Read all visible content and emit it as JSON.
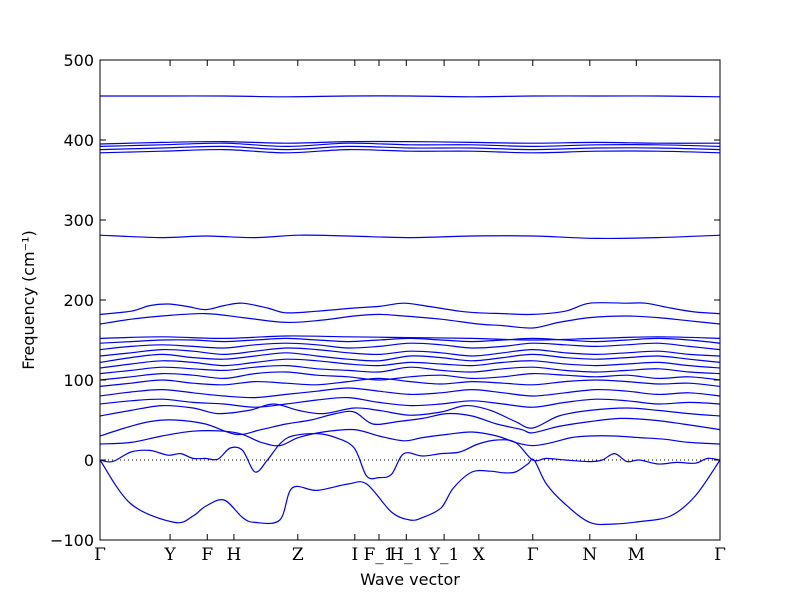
{
  "chart_data": {
    "type": "line",
    "title": "",
    "xlabel": "Wave vector",
    "ylabel": "Frequency (cm⁻¹)",
    "ylim": [
      -100,
      500
    ],
    "yticks": [
      -100,
      0,
      100,
      200,
      300,
      400,
      500
    ],
    "ytick_labels": [
      "−100",
      "0",
      "100",
      "200",
      "300",
      "400",
      "500"
    ],
    "xlim": [
      0,
      1
    ],
    "grid": false,
    "zero_line": "dotted",
    "line_color": "#0000ee",
    "high_symmetry_points": [
      {
        "label": "Γ",
        "x": 0.0
      },
      {
        "label": "Y",
        "x": 0.113
      },
      {
        "label": "F",
        "x": 0.173
      },
      {
        "label": "H",
        "x": 0.216
      },
      {
        "label": "Z",
        "x": 0.319
      },
      {
        "label": "I",
        "x": 0.411
      },
      {
        "label": "F_1",
        "x": 0.45
      },
      {
        "label": "H_1",
        "x": 0.494
      },
      {
        "label": "Y_1",
        "x": 0.555
      },
      {
        "label": "X",
        "x": 0.611
      },
      {
        "label": "Γ",
        "x": 0.698
      },
      {
        "label": "N",
        "x": 0.79
      },
      {
        "label": "M",
        "x": 0.865
      },
      {
        "label": "Γ",
        "x": 1.0
      }
    ],
    "series": [
      {
        "x": [
          0,
          0.05,
          0.12,
          0.15,
          0.17,
          0.2,
          0.23,
          0.25,
          0.29,
          0.31,
          0.35,
          0.4,
          0.43,
          0.47,
          0.5,
          0.52,
          0.55,
          0.57,
          0.6,
          0.63,
          0.65,
          0.67,
          0.69,
          0.7,
          0.72,
          0.75,
          0.79,
          0.83,
          0.87,
          0.92,
          0.96,
          1.0
        ],
        "y": [
          0,
          -55,
          -78,
          -70,
          -58,
          -50,
          -72,
          -78,
          -75,
          -35,
          -38,
          -30,
          -30,
          -65,
          -75,
          -72,
          -60,
          -35,
          -15,
          -14,
          -16,
          -15,
          -5,
          0,
          -30,
          -55,
          -78,
          -80,
          -77,
          -70,
          -45,
          0
        ]
      },
      {
        "x": [
          0,
          0.02,
          0.05,
          0.08,
          0.11,
          0.13,
          0.15,
          0.17,
          0.19,
          0.21,
          0.23,
          0.25,
          0.27,
          0.29,
          0.31,
          0.35,
          0.38,
          0.41,
          0.43,
          0.45,
          0.47,
          0.49,
          0.52,
          0.55,
          0.58,
          0.61,
          0.64,
          0.67,
          0.698,
          0.72,
          0.75,
          0.79,
          0.81,
          0.83,
          0.85,
          0.87,
          0.9,
          0.93,
          0.96,
          0.98,
          1.0
        ],
        "y": [
          0,
          -2,
          10,
          12,
          6,
          8,
          2,
          2,
          1,
          15,
          12,
          -15,
          0,
          20,
          30,
          33,
          28,
          15,
          -20,
          -22,
          -18,
          8,
          5,
          8,
          10,
          20,
          25,
          22,
          0,
          2,
          0,
          -2,
          0,
          8,
          -2,
          0,
          -5,
          -3,
          -4,
          2,
          0
        ]
      },
      {
        "x": [
          0,
          0.05,
          0.1,
          0.15,
          0.2,
          0.23,
          0.26,
          0.29,
          0.32,
          0.36,
          0.41,
          0.45,
          0.49,
          0.52,
          0.56,
          0.6,
          0.64,
          0.67,
          0.698,
          0.73,
          0.76,
          0.79,
          0.83,
          0.87,
          0.91,
          0.95,
          1.0
        ],
        "y": [
          20,
          22,
          30,
          36,
          36,
          32,
          22,
          18,
          28,
          35,
          38,
          30,
          24,
          28,
          32,
          35,
          30,
          22,
          18,
          22,
          28,
          30,
          30,
          28,
          26,
          22,
          20
        ]
      },
      {
        "x": [
          0,
          0.04,
          0.08,
          0.12,
          0.17,
          0.22,
          0.26,
          0.3,
          0.34,
          0.38,
          0.41,
          0.44,
          0.48,
          0.52,
          0.56,
          0.6,
          0.64,
          0.68,
          0.698,
          0.74,
          0.79,
          0.84,
          0.89,
          0.94,
          1.0
        ],
        "y": [
          30,
          40,
          48,
          50,
          45,
          32,
          38,
          45,
          50,
          58,
          60,
          45,
          48,
          52,
          58,
          55,
          45,
          38,
          34,
          42,
          48,
          52,
          50,
          45,
          38
        ]
      },
      {
        "x": [
          0,
          0.05,
          0.1,
          0.15,
          0.19,
          0.24,
          0.28,
          0.32,
          0.36,
          0.41,
          0.45,
          0.5,
          0.55,
          0.59,
          0.63,
          0.67,
          0.698,
          0.74,
          0.79,
          0.85,
          0.9,
          0.95,
          1.0
        ],
        "y": [
          55,
          62,
          68,
          65,
          58,
          62,
          70,
          62,
          58,
          65,
          62,
          56,
          60,
          68,
          62,
          48,
          40,
          55,
          62,
          65,
          62,
          58,
          55
        ]
      },
      {
        "x": [
          0,
          0.05,
          0.1,
          0.15,
          0.2,
          0.25,
          0.3,
          0.35,
          0.4,
          0.45,
          0.5,
          0.55,
          0.6,
          0.65,
          0.698,
          0.75,
          0.8,
          0.85,
          0.9,
          0.95,
          1.0
        ],
        "y": [
          70,
          74,
          76,
          72,
          70,
          66,
          70,
          75,
          78,
          72,
          68,
          70,
          74,
          70,
          66,
          72,
          76,
          74,
          70,
          72,
          70
        ]
      },
      {
        "x": [
          0,
          0.05,
          0.1,
          0.15,
          0.2,
          0.25,
          0.3,
          0.35,
          0.4,
          0.45,
          0.5,
          0.55,
          0.6,
          0.65,
          0.698,
          0.75,
          0.8,
          0.85,
          0.9,
          0.95,
          1.0
        ],
        "y": [
          80,
          85,
          88,
          84,
          80,
          78,
          82,
          86,
          90,
          86,
          82,
          84,
          88,
          84,
          80,
          84,
          88,
          86,
          82,
          84,
          80
        ]
      },
      {
        "x": [
          0,
          0.05,
          0.1,
          0.15,
          0.2,
          0.25,
          0.3,
          0.35,
          0.4,
          0.45,
          0.5,
          0.55,
          0.6,
          0.65,
          0.698,
          0.75,
          0.8,
          0.85,
          0.9,
          0.95,
          1.0
        ],
        "y": [
          92,
          96,
          100,
          96,
          94,
          98,
          96,
          94,
          98,
          102,
          98,
          95,
          98,
          96,
          94,
          98,
          100,
          98,
          95,
          96,
          92
        ]
      },
      {
        "x": [
          0,
          0.05,
          0.1,
          0.15,
          0.2,
          0.25,
          0.3,
          0.35,
          0.4,
          0.45,
          0.5,
          0.55,
          0.6,
          0.65,
          0.698,
          0.75,
          0.8,
          0.85,
          0.9,
          0.95,
          1.0
        ],
        "y": [
          100,
          104,
          108,
          106,
          102,
          108,
          110,
          106,
          104,
          100,
          104,
          106,
          102,
          104,
          108,
          106,
          104,
          106,
          102,
          104,
          100
        ]
      },
      {
        "x": [
          0,
          0.05,
          0.1,
          0.15,
          0.2,
          0.25,
          0.3,
          0.35,
          0.4,
          0.45,
          0.5,
          0.55,
          0.6,
          0.65,
          0.698,
          0.75,
          0.8,
          0.85,
          0.9,
          0.95,
          1.0
        ],
        "y": [
          108,
          112,
          116,
          114,
          112,
          116,
          118,
          114,
          112,
          110,
          116,
          112,
          110,
          114,
          116,
          112,
          110,
          112,
          114,
          110,
          108
        ]
      },
      {
        "x": [
          0,
          0.05,
          0.1,
          0.15,
          0.2,
          0.25,
          0.3,
          0.35,
          0.4,
          0.45,
          0.5,
          0.55,
          0.6,
          0.65,
          0.698,
          0.75,
          0.8,
          0.85,
          0.9,
          0.95,
          1.0
        ],
        "y": [
          115,
          120,
          124,
          122,
          118,
          122,
          126,
          124,
          120,
          118,
          122,
          120,
          118,
          122,
          124,
          120,
          118,
          120,
          122,
          118,
          115
        ]
      },
      {
        "x": [
          0,
          0.05,
          0.1,
          0.15,
          0.2,
          0.25,
          0.3,
          0.35,
          0.4,
          0.45,
          0.5,
          0.55,
          0.6,
          0.65,
          0.698,
          0.75,
          0.8,
          0.85,
          0.9,
          0.95,
          1.0
        ],
        "y": [
          122,
          128,
          132,
          128,
          126,
          130,
          134,
          130,
          126,
          124,
          130,
          128,
          124,
          128,
          132,
          128,
          126,
          128,
          130,
          126,
          122
        ]
      },
      {
        "x": [
          0,
          0.05,
          0.1,
          0.15,
          0.2,
          0.25,
          0.3,
          0.35,
          0.4,
          0.45,
          0.5,
          0.55,
          0.6,
          0.65,
          0.698,
          0.75,
          0.8,
          0.85,
          0.9,
          0.95,
          1.0
        ],
        "y": [
          130,
          134,
          138,
          136,
          132,
          136,
          140,
          138,
          134,
          132,
          136,
          134,
          130,
          134,
          138,
          134,
          132,
          134,
          136,
          132,
          130
        ]
      },
      {
        "x": [
          0,
          0.05,
          0.1,
          0.15,
          0.2,
          0.25,
          0.3,
          0.35,
          0.4,
          0.45,
          0.5,
          0.55,
          0.6,
          0.65,
          0.698,
          0.75,
          0.8,
          0.85,
          0.9,
          0.95,
          1.0
        ],
        "y": [
          138,
          142,
          144,
          142,
          140,
          144,
          146,
          144,
          140,
          142,
          146,
          144,
          140,
          142,
          146,
          144,
          142,
          144,
          146,
          142,
          138
        ]
      },
      {
        "x": [
          0,
          0.05,
          0.1,
          0.15,
          0.2,
          0.25,
          0.3,
          0.35,
          0.4,
          0.45,
          0.5,
          0.55,
          0.6,
          0.65,
          0.698,
          0.75,
          0.8,
          0.85,
          0.9,
          0.95,
          1.0
        ],
        "y": [
          146,
          148,
          150,
          150,
          148,
          150,
          152,
          150,
          148,
          150,
          152,
          150,
          148,
          150,
          152,
          150,
          148,
          150,
          152,
          150,
          146
        ]
      },
      {
        "x": [
          0,
          0.1,
          0.2,
          0.3,
          0.4,
          0.5,
          0.6,
          0.698,
          0.8,
          0.9,
          1.0
        ],
        "y": [
          152,
          154,
          152,
          155,
          154,
          153,
          152,
          150,
          152,
          154,
          152
        ]
      },
      {
        "x": [
          0,
          0.05,
          0.1,
          0.17,
          0.23,
          0.3,
          0.36,
          0.41,
          0.45,
          0.49,
          0.55,
          0.61,
          0.65,
          0.698,
          0.74,
          0.79,
          0.85,
          0.9,
          0.95,
          1.0
        ],
        "y": [
          170,
          176,
          180,
          183,
          178,
          172,
          175,
          180,
          182,
          180,
          176,
          170,
          168,
          165,
          172,
          178,
          180,
          178,
          174,
          170
        ]
      },
      {
        "x": [
          0,
          0.05,
          0.08,
          0.11,
          0.14,
          0.17,
          0.2,
          0.23,
          0.27,
          0.3,
          0.35,
          0.41,
          0.45,
          0.49,
          0.53,
          0.58,
          0.61,
          0.65,
          0.698,
          0.75,
          0.79,
          0.85,
          0.88,
          0.92,
          0.96,
          1.0
        ],
        "y": [
          182,
          186,
          193,
          195,
          192,
          188,
          193,
          196,
          190,
          184,
          186,
          190,
          192,
          196,
          192,
          186,
          184,
          183,
          182,
          186,
          196,
          196,
          196,
          190,
          185,
          183
        ]
      },
      {
        "x": [
          0,
          0.1,
          0.17,
          0.25,
          0.32,
          0.4,
          0.5,
          0.6,
          0.698,
          0.8,
          0.9,
          1.0
        ],
        "y": [
          281,
          278,
          280,
          278,
          281,
          280,
          278,
          280,
          280,
          277,
          278,
          281
        ]
      },
      {
        "x": [
          0,
          0.1,
          0.2,
          0.3,
          0.4,
          0.5,
          0.6,
          0.698,
          0.8,
          0.9,
          1.0
        ],
        "y": [
          384,
          386,
          388,
          384,
          388,
          386,
          386,
          384,
          386,
          386,
          384
        ]
      },
      {
        "x": [
          0,
          0.1,
          0.2,
          0.3,
          0.4,
          0.5,
          0.6,
          0.698,
          0.8,
          0.9,
          1.0
        ],
        "y": [
          388,
          390,
          392,
          388,
          392,
          390,
          390,
          388,
          390,
          390,
          388
        ]
      },
      {
        "x": [
          0,
          0.1,
          0.2,
          0.3,
          0.4,
          0.5,
          0.6,
          0.698,
          0.8,
          0.9,
          1.0
        ],
        "y": [
          392,
          394,
          396,
          392,
          396,
          394,
          394,
          392,
          394,
          394,
          392
        ]
      },
      {
        "x": [
          0,
          0.1,
          0.2,
          0.3,
          0.4,
          0.5,
          0.6,
          0.698,
          0.8,
          0.9,
          1.0
        ],
        "y": [
          395,
          397,
          398,
          396,
          398,
          398,
          397,
          396,
          397,
          396,
          396
        ]
      },
      {
        "x": [
          0,
          0.1,
          0.2,
          0.3,
          0.4,
          0.5,
          0.6,
          0.698,
          0.8,
          0.9,
          1.0
        ],
        "y": [
          455,
          455,
          455,
          454,
          455,
          455,
          454,
          455,
          455,
          455,
          454
        ]
      }
    ]
  }
}
